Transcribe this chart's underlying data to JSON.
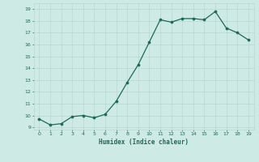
{
  "x": [
    0,
    1,
    2,
    3,
    4,
    5,
    6,
    7,
    8,
    9,
    10,
    11,
    12,
    13,
    14,
    15,
    16,
    17,
    18,
    19
  ],
  "y": [
    9.7,
    9.2,
    9.3,
    9.9,
    10.0,
    9.8,
    10.1,
    11.2,
    12.8,
    14.3,
    16.2,
    18.1,
    17.9,
    18.2,
    18.2,
    18.1,
    18.8,
    17.4,
    17.0,
    16.4
  ],
  "xlabel": "Humidex (Indice chaleur)",
  "xlim": [
    -0.5,
    19.5
  ],
  "ylim": [
    8.8,
    19.5
  ],
  "yticks": [
    9,
    10,
    11,
    12,
    13,
    14,
    15,
    16,
    17,
    18,
    19
  ],
  "xticks": [
    0,
    1,
    2,
    3,
    4,
    5,
    6,
    7,
    8,
    9,
    10,
    11,
    12,
    13,
    14,
    15,
    16,
    17,
    18,
    19
  ],
  "line_color": "#1a6b5a",
  "marker_color": "#1a6b5a",
  "bg_color": "#ceeae4",
  "grid_color": "#b8d8d2",
  "label_color": "#1a6b5a",
  "tick_color": "#1a6b5a"
}
